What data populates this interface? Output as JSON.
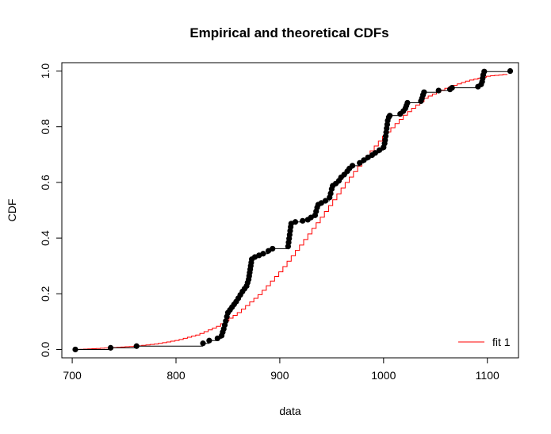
{
  "chart_data": {
    "type": "line",
    "title": "Empirical and theoretical CDFs",
    "xlabel": "data",
    "ylabel": "CDF",
    "xlim": [
      690,
      1130
    ],
    "ylim": [
      -0.03,
      1.03
    ],
    "xticks": [
      700,
      800,
      900,
      1000,
      1100
    ],
    "yticks": [
      0.0,
      0.2,
      0.4,
      0.6,
      0.8,
      1.0
    ],
    "xtick_labels": [
      "700",
      "800",
      "900",
      "1000",
      "1100"
    ],
    "ytick_labels": [
      "0.0",
      "0.2",
      "0.4",
      "0.6",
      "0.8",
      "1.0"
    ],
    "grid": false,
    "legend": {
      "position": "bottom-right",
      "entries": [
        {
          "label": "fit 1",
          "color": "#ff0000"
        }
      ]
    },
    "empirical": {
      "color": "#000000",
      "points": [
        [
          703,
          0.0
        ],
        [
          737,
          0.006
        ],
        [
          762,
          0.012
        ],
        [
          826,
          0.022
        ],
        [
          832,
          0.032
        ],
        [
          840,
          0.04
        ],
        [
          844,
          0.05
        ],
        [
          845,
          0.062
        ],
        [
          846,
          0.074
        ],
        [
          847,
          0.088
        ],
        [
          848,
          0.102
        ],
        [
          849,
          0.118
        ],
        [
          850,
          0.132
        ],
        [
          852,
          0.142
        ],
        [
          854,
          0.152
        ],
        [
          856,
          0.162
        ],
        [
          858,
          0.172
        ],
        [
          860,
          0.184
        ],
        [
          862,
          0.196
        ],
        [
          864,
          0.208
        ],
        [
          866,
          0.218
        ],
        [
          868,
          0.228
        ],
        [
          869,
          0.24
        ],
        [
          870,
          0.252
        ],
        [
          870.5,
          0.264
        ],
        [
          871,
          0.276
        ],
        [
          871.5,
          0.288
        ],
        [
          872,
          0.3
        ],
        [
          872.5,
          0.312
        ],
        [
          873,
          0.324
        ],
        [
          876,
          0.332
        ],
        [
          880,
          0.338
        ],
        [
          884,
          0.344
        ],
        [
          889,
          0.354
        ],
        [
          893,
          0.362
        ],
        [
          908,
          0.37
        ],
        [
          908.5,
          0.384
        ],
        [
          909,
          0.398
        ],
        [
          909.5,
          0.412
        ],
        [
          910,
          0.426
        ],
        [
          910.5,
          0.44
        ],
        [
          911,
          0.452
        ],
        [
          915,
          0.458
        ],
        [
          922,
          0.462
        ],
        [
          927,
          0.466
        ],
        [
          930,
          0.474
        ],
        [
          934,
          0.482
        ],
        [
          935,
          0.496
        ],
        [
          936,
          0.51
        ],
        [
          937,
          0.52
        ],
        [
          940,
          0.526
        ],
        [
          944,
          0.534
        ],
        [
          948,
          0.546
        ],
        [
          949,
          0.56
        ],
        [
          950,
          0.576
        ],
        [
          951,
          0.588
        ],
        [
          954,
          0.596
        ],
        [
          957,
          0.606
        ],
        [
          959,
          0.618
        ],
        [
          962,
          0.628
        ],
        [
          965,
          0.64
        ],
        [
          967,
          0.65
        ],
        [
          970,
          0.66
        ],
        [
          977,
          0.67
        ],
        [
          981,
          0.68
        ],
        [
          985,
          0.69
        ],
        [
          989,
          0.698
        ],
        [
          992,
          0.706
        ],
        [
          996,
          0.716
        ],
        [
          1000,
          0.726
        ],
        [
          1001,
          0.74
        ],
        [
          1001.5,
          0.752
        ],
        [
          1002,
          0.766
        ],
        [
          1002.5,
          0.78
        ],
        [
          1003,
          0.794
        ],
        [
          1003.5,
          0.808
        ],
        [
          1004,
          0.822
        ],
        [
          1005,
          0.834
        ],
        [
          1006,
          0.84
        ],
        [
          1016,
          0.846
        ],
        [
          1019,
          0.856
        ],
        [
          1021,
          0.866
        ],
        [
          1022,
          0.876
        ],
        [
          1023,
          0.886
        ],
        [
          1036,
          0.892
        ],
        [
          1037,
          0.902
        ],
        [
          1038,
          0.914
        ],
        [
          1039,
          0.924
        ],
        [
          1053,
          0.93
        ],
        [
          1064,
          0.934
        ],
        [
          1066,
          0.94
        ],
        [
          1091,
          0.944
        ],
        [
          1094,
          0.952
        ],
        [
          1095,
          0.962
        ],
        [
          1095.5,
          0.974
        ],
        [
          1096,
          0.986
        ],
        [
          1097,
          0.998
        ],
        [
          1122,
          1.0
        ]
      ]
    },
    "theoretical": {
      "name": "fit 1",
      "color": "#ff0000",
      "x": [
        703,
        720,
        740,
        760,
        780,
        800,
        820,
        840,
        860,
        880,
        900,
        920,
        940,
        960,
        980,
        1000,
        1020,
        1040,
        1060,
        1080,
        1100,
        1122
      ],
      "y": [
        0.0,
        0.003,
        0.007,
        0.012,
        0.02,
        0.033,
        0.053,
        0.085,
        0.135,
        0.2,
        0.283,
        0.38,
        0.48,
        0.585,
        0.683,
        0.77,
        0.845,
        0.905,
        0.94,
        0.965,
        0.982,
        0.99
      ]
    }
  }
}
